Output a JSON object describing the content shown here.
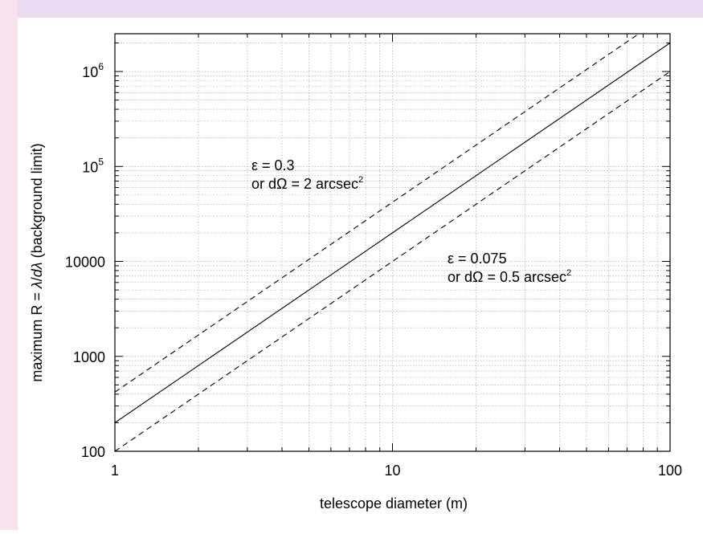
{
  "colors": {
    "frame_left": "#f7e3ec",
    "frame_top": "#ecdcf2",
    "plot_bg": "#ffffff",
    "axis": "#000000",
    "grid": "#a0a0a0",
    "line": "#000000"
  },
  "chart_data": {
    "type": "line",
    "xlabel": "telescope diameter (m)",
    "ylabel_parts": [
      "maximum R = ",
      "λ",
      "/",
      "d",
      "λ",
      " (background limit)"
    ],
    "x_scale": "log",
    "y_scale": "log",
    "xlim": [
      1,
      100
    ],
    "ylim": [
      100,
      2500000
    ],
    "grid": true,
    "x_ticks": [
      {
        "value": 1,
        "label": "1"
      },
      {
        "value": 10,
        "label": "10"
      },
      {
        "value": 100,
        "label": "100"
      }
    ],
    "y_ticks": [
      {
        "value": 100,
        "label": "100"
      },
      {
        "value": 1000,
        "label": "1000"
      },
      {
        "value": 10000,
        "label": "10000"
      },
      {
        "value": 100000,
        "label": "10",
        "sup": "5"
      },
      {
        "value": 1000000,
        "label": "10",
        "sup": "6"
      }
    ],
    "series": [
      {
        "style": "dashed",
        "x": [
          1,
          100
        ],
        "y": [
          420,
          4200000
        ]
      },
      {
        "style": "solid",
        "x": [
          1,
          100
        ],
        "y": [
          200,
          2000000
        ]
      },
      {
        "style": "dashed",
        "x": [
          1,
          100
        ],
        "y": [
          100,
          1000000
        ]
      }
    ],
    "annotations": [
      {
        "id": "upper",
        "line1": "ε = 0.3",
        "line2_prefix": "or dΩ = 2 arcsec",
        "line2_sup": "2"
      },
      {
        "id": "lower",
        "line1": "ε = 0.075",
        "line2_prefix": "or dΩ = 0.5 arcsec",
        "line2_sup": "2"
      }
    ]
  }
}
